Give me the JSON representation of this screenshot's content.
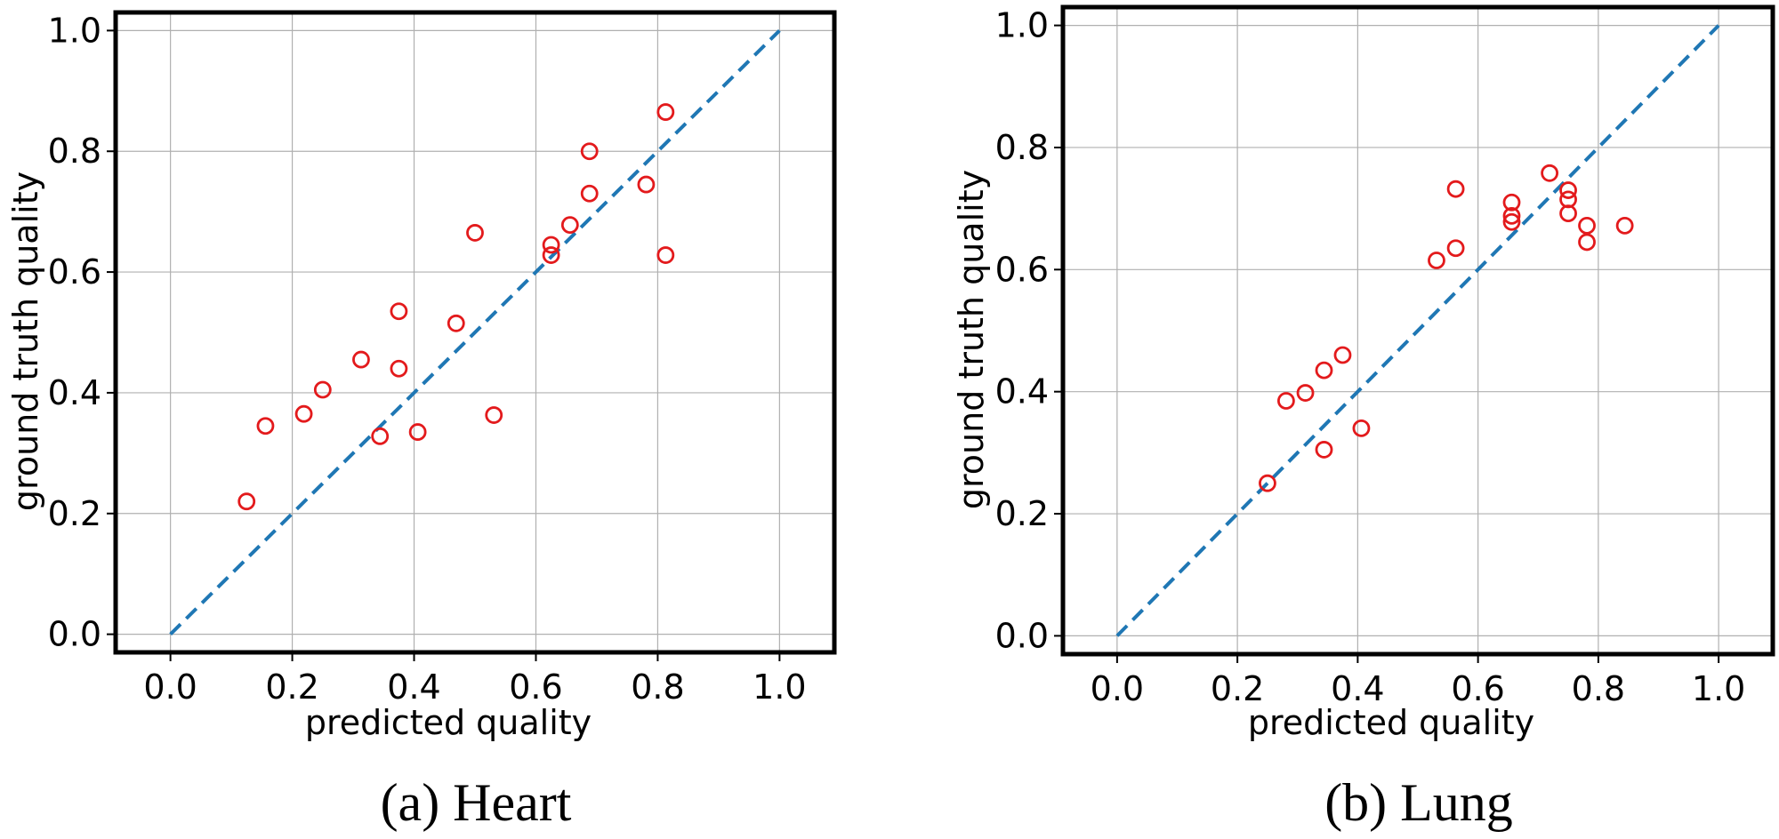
{
  "chart_data": [
    {
      "type": "scatter",
      "caption": "(a) Heart",
      "xlabel": "predicted quality",
      "ylabel": "ground truth quality",
      "xlim": [
        -0.09,
        1.09
      ],
      "ylim": [
        -0.03,
        1.03
      ],
      "xticks": [
        "0.0",
        "0.2",
        "0.4",
        "0.6",
        "0.8",
        "1.0"
      ],
      "yticks": [
        "0.0",
        "0.2",
        "0.4",
        "0.6",
        "0.8",
        "1.0"
      ],
      "grid": true,
      "reference_line": {
        "x": [
          0,
          1
        ],
        "y": [
          0,
          1
        ],
        "style": "dashed",
        "color": "#1f77b4"
      },
      "series": [
        {
          "marker": "open-circle",
          "color": "#e31a1c",
          "points": [
            [
              0.125,
              0.22
            ],
            [
              0.156,
              0.345
            ],
            [
              0.219,
              0.365
            ],
            [
              0.25,
              0.405
            ],
            [
              0.313,
              0.455
            ],
            [
              0.344,
              0.328
            ],
            [
              0.375,
              0.535
            ],
            [
              0.375,
              0.44
            ],
            [
              0.406,
              0.335
            ],
            [
              0.469,
              0.515
            ],
            [
              0.5,
              0.665
            ],
            [
              0.531,
              0.363
            ],
            [
              0.625,
              0.645
            ],
            [
              0.625,
              0.628
            ],
            [
              0.656,
              0.678
            ],
            [
              0.688,
              0.8
            ],
            [
              0.688,
              0.73
            ],
            [
              0.781,
              0.745
            ],
            [
              0.813,
              0.865
            ],
            [
              0.813,
              0.628
            ]
          ]
        }
      ]
    },
    {
      "type": "scatter",
      "caption": "(b) Lung",
      "xlabel": "predicted quality",
      "ylabel": "ground truth quality",
      "xlim": [
        -0.09,
        1.09
      ],
      "ylim": [
        -0.03,
        1.03
      ],
      "xticks": [
        "0.0",
        "0.2",
        "0.4",
        "0.6",
        "0.8",
        "1.0"
      ],
      "yticks": [
        "0.0",
        "0.2",
        "0.4",
        "0.6",
        "0.8",
        "1.0"
      ],
      "grid": true,
      "reference_line": {
        "x": [
          0,
          1
        ],
        "y": [
          0,
          1
        ],
        "style": "dashed",
        "color": "#1f77b4"
      },
      "series": [
        {
          "marker": "open-circle",
          "color": "#e31a1c",
          "points": [
            [
              0.25,
              0.25
            ],
            [
              0.281,
              0.385
            ],
            [
              0.313,
              0.398
            ],
            [
              0.344,
              0.435
            ],
            [
              0.344,
              0.305
            ],
            [
              0.375,
              0.46
            ],
            [
              0.406,
              0.34
            ],
            [
              0.531,
              0.615
            ],
            [
              0.563,
              0.732
            ],
            [
              0.563,
              0.635
            ],
            [
              0.656,
              0.71
            ],
            [
              0.656,
              0.688
            ],
            [
              0.656,
              0.678
            ],
            [
              0.719,
              0.758
            ],
            [
              0.75,
              0.73
            ],
            [
              0.75,
              0.715
            ],
            [
              0.75,
              0.692
            ],
            [
              0.781,
              0.672
            ],
            [
              0.781,
              0.645
            ],
            [
              0.844,
              0.672
            ]
          ]
        }
      ]
    }
  ]
}
